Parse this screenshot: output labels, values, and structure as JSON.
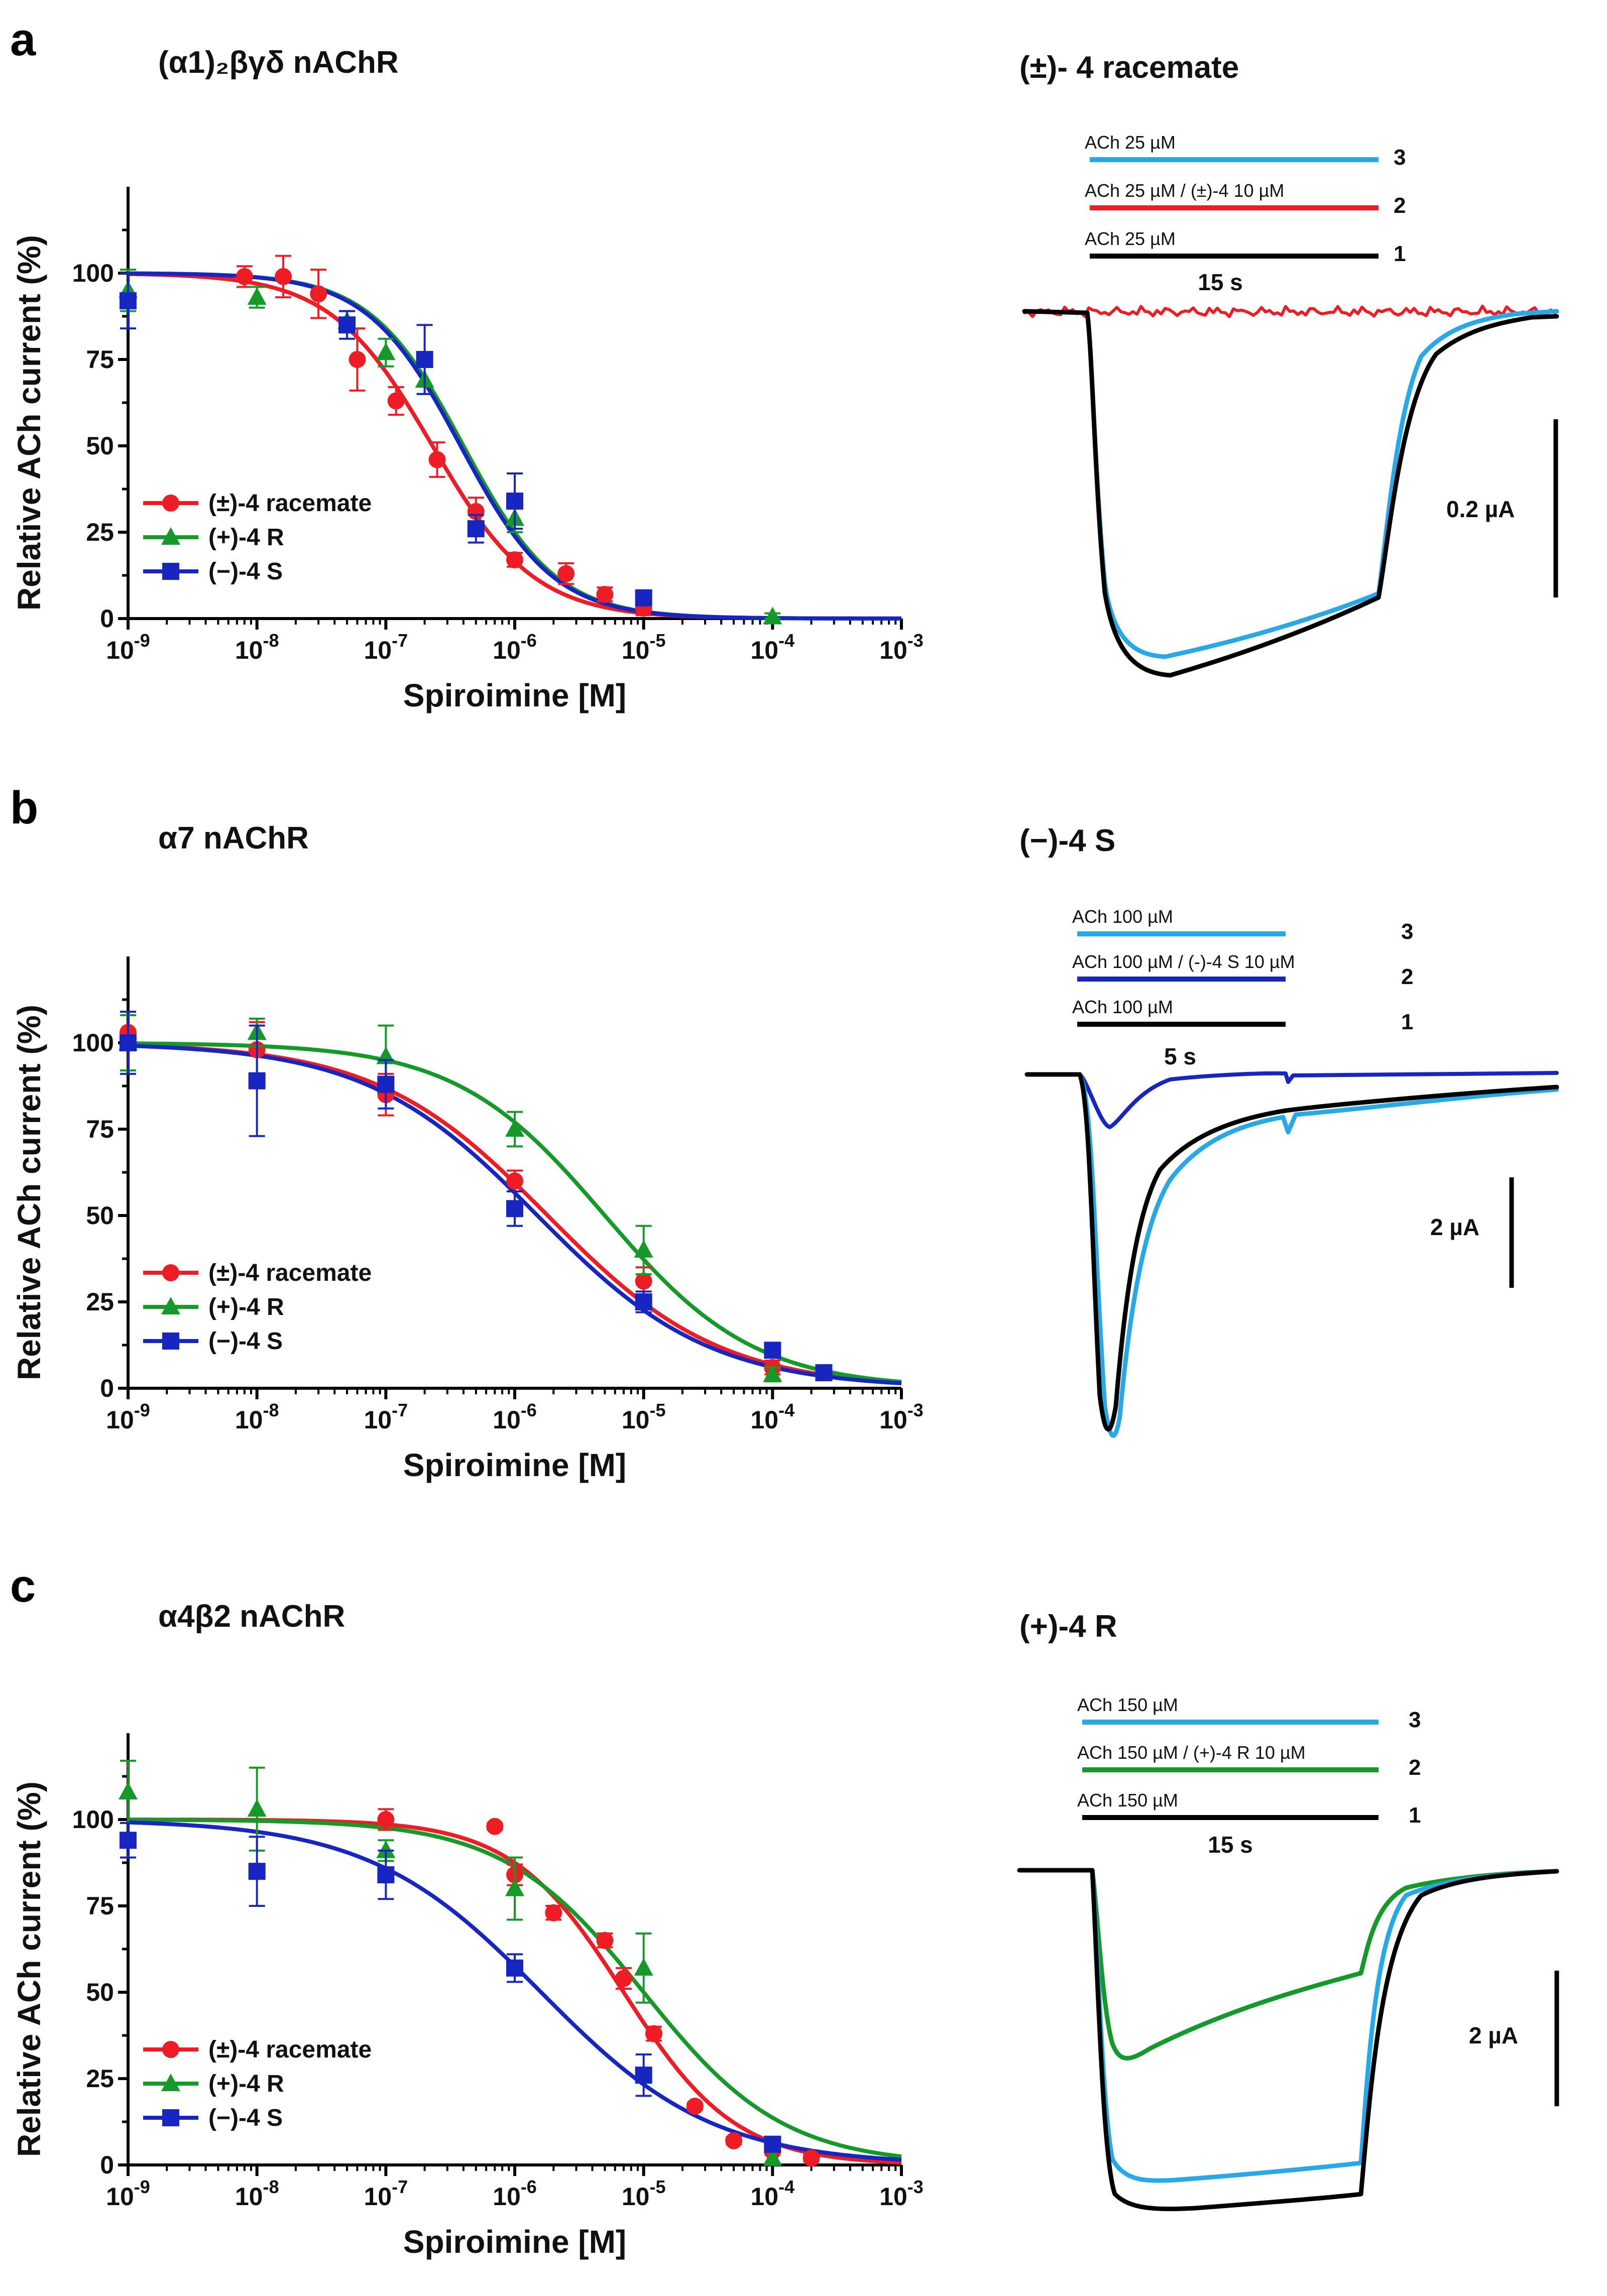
{
  "chart_data": [
    {
      "type": "scatter",
      "panel": "a",
      "title": "(α1)₂βγδ nAChR",
      "xlabel": "Spiroimine [M]",
      "ylabel": "Relative ACh current (%)",
      "xscale": "log",
      "xlim": [
        1e-09,
        0.001
      ],
      "ylim": [
        0,
        125
      ],
      "xticks": [
        -9,
        -8,
        -7,
        -6,
        -5,
        -4,
        -3
      ],
      "yticks": [
        0,
        25,
        50,
        75,
        100
      ],
      "legend_position": "lower-left",
      "series": [
        {
          "name": "(±)-4 racemate",
          "color": "#ee1c25",
          "marker": "circle",
          "ic50": 2.3e-07,
          "hill": 1.1,
          "points": [
            [
              8e-09,
              99
            ],
            [
              1.6e-08,
              99
            ],
            [
              3e-08,
              94
            ],
            [
              6e-08,
              75
            ],
            [
              1.2e-07,
              63
            ],
            [
              2.5e-07,
              46
            ],
            [
              5e-07,
              31
            ],
            [
              1e-06,
              17
            ],
            [
              2.5e-06,
              13
            ],
            [
              5e-06,
              7
            ],
            [
              1e-05,
              3
            ]
          ],
          "errors": [
            3,
            6,
            7,
            9,
            4,
            5,
            4,
            2,
            3,
            2,
            2
          ]
        },
        {
          "name": "(+)-4 R",
          "color": "#159a2a",
          "marker": "triangle",
          "ic50": 4e-07,
          "hill": 1.2,
          "points": [
            [
              1e-09,
              95
            ],
            [
              1e-08,
              93
            ],
            [
              5e-08,
              86
            ],
            [
              1e-07,
              77
            ],
            [
              2e-07,
              69
            ],
            [
              1e-06,
              29
            ],
            [
              0.0001,
              0.5
            ]
          ],
          "errors": [
            6,
            3,
            3,
            4,
            4,
            4,
            1
          ]
        },
        {
          "name": "(−)-4 S",
          "color": "#1726c0",
          "marker": "square",
          "ic50": 3.8e-07,
          "hill": 1.2,
          "points": [
            [
              1e-09,
              92
            ],
            [
              5e-08,
              85
            ],
            [
              2e-07,
              75
            ],
            [
              5e-07,
              26
            ],
            [
              1e-06,
              34
            ],
            [
              1e-05,
              6
            ]
          ],
          "errors": [
            8,
            4,
            10,
            4,
            8,
            2
          ]
        }
      ]
    },
    {
      "type": "scatter",
      "panel": "b",
      "title": "α7 nAChR",
      "xlabel": "Spiroimine [M]",
      "ylabel": "Relative ACh current (%)",
      "xscale": "log",
      "xlim": [
        1e-09,
        0.001
      ],
      "ylim": [
        0,
        125
      ],
      "xticks": [
        -9,
        -8,
        -7,
        -6,
        -5,
        -4,
        -3
      ],
      "yticks": [
        0,
        25,
        50,
        75,
        100
      ],
      "legend_position": "lower-left",
      "series": [
        {
          "name": "(±)-4 racemate",
          "color": "#ee1c25",
          "marker": "circle",
          "ic50": 1.8e-06,
          "hill": 0.65,
          "points": [
            [
              1e-09,
              103
            ],
            [
              1e-08,
              98
            ],
            [
              1e-07,
              85
            ],
            [
              1e-06,
              60
            ],
            [
              1e-05,
              31
            ],
            [
              0.0001,
              6
            ]
          ],
          "errors": [
            5,
            8,
            6,
            3,
            4,
            2
          ]
        },
        {
          "name": "(+)-4 R",
          "color": "#159a2a",
          "marker": "triangle",
          "ic50": 5e-06,
          "hill": 0.75,
          "points": [
            [
              1e-09,
              100
            ],
            [
              1e-08,
              103
            ],
            [
              1e-07,
              96
            ],
            [
              1e-06,
              75
            ],
            [
              1e-05,
              40
            ],
            [
              0.0001,
              4
            ]
          ],
          "errors": [
            8,
            4,
            9,
            5,
            7,
            2
          ]
        },
        {
          "name": "(−)-4 S",
          "color": "#1726c0",
          "marker": "square",
          "ic50": 1.5e-06,
          "hill": 0.65,
          "points": [
            [
              1e-09,
              100
            ],
            [
              1e-08,
              89
            ],
            [
              1e-07,
              88
            ],
            [
              1e-06,
              52
            ],
            [
              1e-05,
              25
            ],
            [
              0.0001,
              11
            ],
            [
              0.00025,
              4.5
            ]
          ],
          "errors": [
            9,
            16,
            7,
            5,
            3,
            2,
            1
          ]
        }
      ]
    },
    {
      "type": "scatter",
      "panel": "c",
      "title": "α4β2 nAChR",
      "xlabel": "Spiroimine [M]",
      "ylabel": "Relative ACh current (%)",
      "xscale": "log",
      "xlim": [
        1e-09,
        0.001
      ],
      "ylim": [
        0,
        125
      ],
      "xticks": [
        -9,
        -8,
        -7,
        -6,
        -5,
        -4,
        -3
      ],
      "yticks": [
        0,
        25,
        50,
        75,
        100
      ],
      "legend_position": "lower-left",
      "series": [
        {
          "name": "(±)-4 racemate",
          "color": "#ee1c25",
          "marker": "circle",
          "ic50": 7e-06,
          "hill": 1.0,
          "points": [
            [
              1e-07,
              100
            ],
            [
              7e-07,
              98
            ],
            [
              1e-06,
              84
            ],
            [
              2e-06,
              73
            ],
            [
              5e-06,
              65
            ],
            [
              7e-06,
              54
            ],
            [
              1.2e-05,
              38
            ],
            [
              2.5e-05,
              17
            ],
            [
              5e-05,
              7
            ],
            [
              0.0001,
              4
            ],
            [
              0.0002,
              2
            ]
          ],
          "errors": [
            3,
            1,
            3,
            2,
            2,
            3,
            2,
            1,
            1,
            1,
            1
          ]
        },
        {
          "name": "(+)-4 R",
          "color": "#159a2a",
          "marker": "triangle",
          "ic50": 1e-05,
          "hill": 0.8,
          "points": [
            [
              1e-09,
              108
            ],
            [
              1e-08,
              103
            ],
            [
              1e-07,
              91
            ],
            [
              1e-06,
              80
            ],
            [
              1e-05,
              57
            ],
            [
              0.0001,
              2
            ]
          ],
          "errors": [
            9,
            12,
            3,
            9,
            10,
            2
          ]
        },
        {
          "name": "(−)-4 S",
          "color": "#1726c0",
          "marker": "square",
          "ic50": 1.6e-06,
          "hill": 0.65,
          "points": [
            [
              1e-09,
              94
            ],
            [
              1e-08,
              85
            ],
            [
              1e-07,
              84
            ],
            [
              1e-06,
              57
            ],
            [
              1e-05,
              26
            ],
            [
              0.0001,
              6
            ]
          ],
          "errors": [
            5,
            10,
            7,
            4,
            6,
            2
          ]
        }
      ]
    }
  ],
  "traces": [
    {
      "title": "(±)- 4 racemate",
      "stimuli": [
        {
          "num": "3",
          "label": "ACh 25 µM",
          "color": "#29a8e8"
        },
        {
          "num": "2",
          "label": "ACh 25 µM / (±)-4   10 µM",
          "color": "#ee1c25"
        },
        {
          "num": "1",
          "label": "ACh 25 µM",
          "color": "#000000"
        }
      ],
      "time_scale": "15 s",
      "amp_scale": "0.2 µA"
    },
    {
      "title": "(−)-4 S",
      "stimuli": [
        {
          "num": "3",
          "label": "ACh 100 µM",
          "color": "#29a8e8"
        },
        {
          "num": "2",
          "label": "ACh 100 µM / (-)-4 S 10 µM",
          "color": "#1726c0"
        },
        {
          "num": "1",
          "label": "ACh 100 µM",
          "color": "#000000"
        }
      ],
      "time_scale": "5 s",
      "amp_scale": "2 µA"
    },
    {
      "title": "(+)-4 R",
      "stimuli": [
        {
          "num": "3",
          "label": "ACh 150 µM",
          "color": "#29a8e8"
        },
        {
          "num": "2",
          "label": "ACh 150 µM / (+)-4 R 10 µM",
          "color": "#159a2a"
        },
        {
          "num": "1",
          "label": "ACh 150 µM",
          "color": "#000000"
        }
      ],
      "time_scale": "15 s",
      "amp_scale": "2 µA"
    }
  ],
  "panel_labels": [
    "a",
    "b",
    "c"
  ],
  "tick_base": "10",
  "colors": {
    "red": "#ee1c25",
    "green": "#159a2a",
    "blue": "#1726c0",
    "lightblue": "#29a8e8",
    "black": "#000000"
  }
}
